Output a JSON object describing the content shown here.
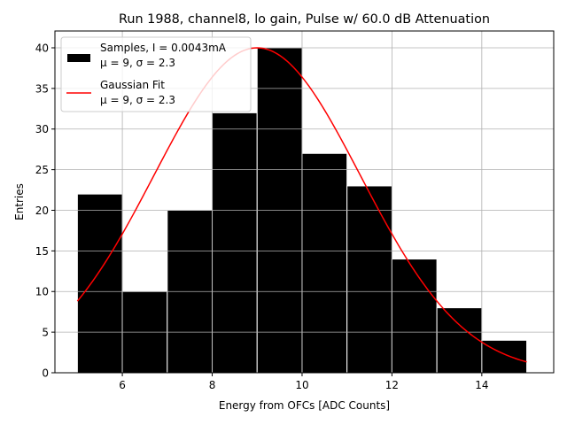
{
  "chart_data": {
    "type": "bar",
    "title": "Run 1988, channel8, lo gain, Pulse w/ 60.0 dB Attenuation",
    "xlabel": "Energy from OFCs [ADC Counts]",
    "ylabel": "Entries",
    "xlim": [
      4.5,
      15.6
    ],
    "ylim": [
      0,
      42.07
    ],
    "xticks": [
      6,
      8,
      10,
      12,
      14
    ],
    "yticks": [
      0,
      5,
      10,
      15,
      20,
      25,
      30,
      35,
      40
    ],
    "grid": true,
    "legend_position": "top-left",
    "histogram": {
      "name": "Samples, I = 0.0043mA",
      "name_line2": "μ = 9, σ = 2.3",
      "bin_edges": [
        5,
        6,
        7,
        8,
        9,
        10,
        11,
        12,
        13,
        14,
        15
      ],
      "values": [
        22,
        10,
        20,
        32,
        40,
        27,
        23,
        14,
        8,
        4
      ],
      "color": "#000000",
      "edgecolor": "#ffffff"
    },
    "fit": {
      "name": "Gaussian Fit",
      "name_line2": "μ = 9, σ = 2.3",
      "type": "gaussian",
      "amplitude": 40,
      "mu": 9,
      "sigma": 2.3,
      "x_range": [
        5,
        15
      ],
      "color": "#ff0000"
    }
  }
}
